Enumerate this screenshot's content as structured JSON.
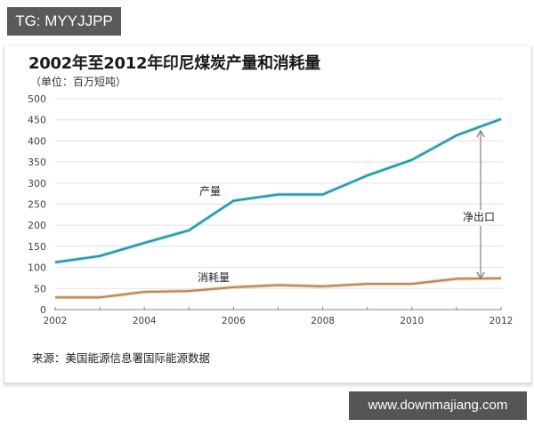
{
  "watermark": {
    "top_left": "TG: MYYJJPP",
    "bottom_right": "www.downmajiang.com"
  },
  "chart_data": {
    "type": "line",
    "title": "2002年至2012年印尼煤炭产量和消耗量",
    "subtitle": "（单位：百万短吨）",
    "xlabel": "",
    "ylabel": "百万短吨",
    "x": [
      2002,
      2003,
      2004,
      2005,
      2006,
      2007,
      2008,
      2009,
      2010,
      2011,
      2012
    ],
    "series": [
      {
        "name": "产量",
        "color": "#2e8fa3",
        "values": [
          112,
          127,
          158,
          188,
          258,
          273,
          273,
          318,
          355,
          413,
          452
        ]
      },
      {
        "name": "消耗量",
        "color": "#b9875a",
        "values": [
          29,
          29,
          42,
          44,
          53,
          58,
          55,
          61,
          61,
          73,
          74
        ]
      }
    ],
    "ylim": [
      0,
      500
    ],
    "yticks": [
      0,
      50,
      100,
      150,
      200,
      250,
      300,
      350,
      400,
      450,
      500
    ],
    "xtick_labels": [
      "2002",
      "2004",
      "2006",
      "2008",
      "2010",
      "2012"
    ],
    "grid": "horizontal",
    "legend": "inline labels",
    "annotations": [
      {
        "text": "产量",
        "near": "production line at 2006"
      },
      {
        "text": "消耗量",
        "near": "consumption line at 2006"
      },
      {
        "text": "净出口",
        "type": "double-arrow",
        "x_position": 2011.55,
        "from": "consumption",
        "to": "production"
      }
    ],
    "source": "来源：美国能源信息署国际能源数据"
  },
  "labels": {
    "production": "产量",
    "consumption": "消耗量",
    "net_export": "净出口",
    "yticks": [
      "0",
      "50",
      "100",
      "150",
      "200",
      "250",
      "300",
      "350",
      "400",
      "450",
      "500"
    ],
    "xticks": [
      "2002",
      "2004",
      "2006",
      "2008",
      "2010",
      "2012"
    ]
  }
}
